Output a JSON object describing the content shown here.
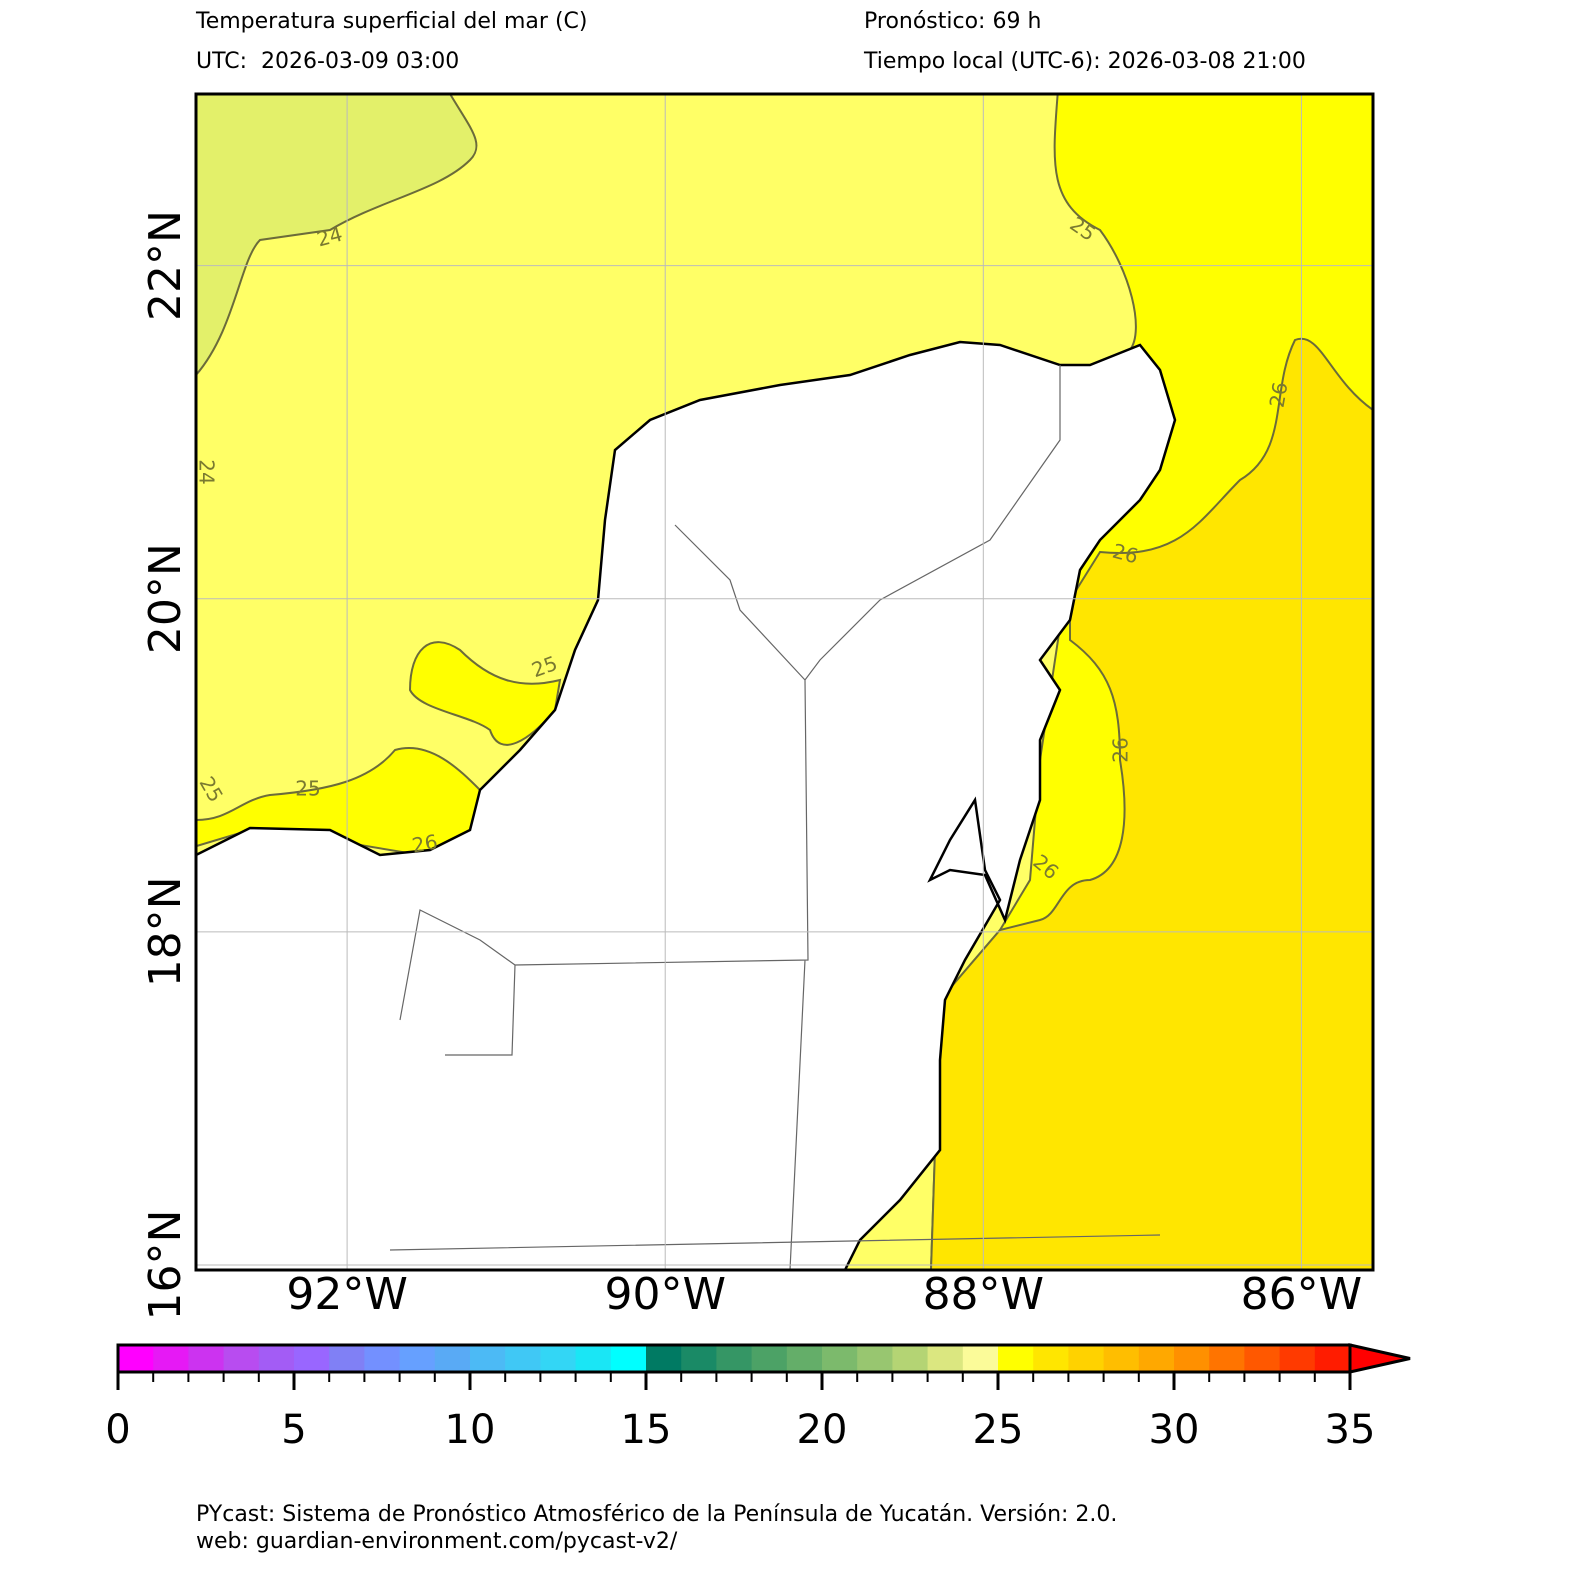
{
  "header": {
    "title": "Temperatura superficial del mar (C)",
    "forecast": "Pronóstico: 69 h",
    "utc": "UTC:  2026-03-09 03:00",
    "local": "Tiempo local (UTC-6): 2026-03-08 21:00"
  },
  "map": {
    "xlim": [
      -92.95,
      -85.55
    ],
    "ylim": [
      15.97,
      23.03
    ],
    "xticks": [
      {
        "value": -92,
        "label": "92°W"
      },
      {
        "value": -90,
        "label": "90°W"
      },
      {
        "value": -88,
        "label": "88°W"
      },
      {
        "value": -86,
        "label": "86°W"
      }
    ],
    "yticks": [
      {
        "value": 16,
        "label": "16°N"
      },
      {
        "value": 18,
        "label": "18°N"
      },
      {
        "value": 20,
        "label": "20°N"
      },
      {
        "value": 22,
        "label": "22°N"
      }
    ],
    "grid": true,
    "contour_labels": [
      24,
      24,
      25,
      25,
      25,
      26,
      25,
      26,
      26,
      26,
      26
    ]
  },
  "colorbar": {
    "range": [
      0,
      35
    ],
    "ticks": [
      0,
      5,
      10,
      15,
      20,
      25,
      30,
      35
    ],
    "colors": [
      "#ff00ff",
      "#e619f5",
      "#cc33f0",
      "#b84cf0",
      "#a35cf5",
      "#9966ff",
      "#8080f5",
      "#7390ff",
      "#66a0ff",
      "#59aaf5",
      "#4cbaf5",
      "#40c8f5",
      "#33d6f5",
      "#1ae6f5",
      "#00ffff",
      "#007a63",
      "#1a8a66",
      "#359665",
      "#4ca266",
      "#64ae69",
      "#7cba6c",
      "#98c670",
      "#b4d474",
      "#dbe780",
      "#fbfb99",
      "#ffff00",
      "#ffe600",
      "#ffd200",
      "#ffbe00",
      "#ffa800",
      "#ff9000",
      "#ff7400",
      "#ff5800",
      "#ff3a00",
      "#ff1c00"
    ],
    "extend_color": "#ff0000"
  },
  "footer": {
    "line1": "PYcast: Sistema de Pronóstico Atmosférico de la Península de Yucatán. Versión: 2.0.",
    "line2": "web: guardian-environment.com/pycast-v2/"
  }
}
